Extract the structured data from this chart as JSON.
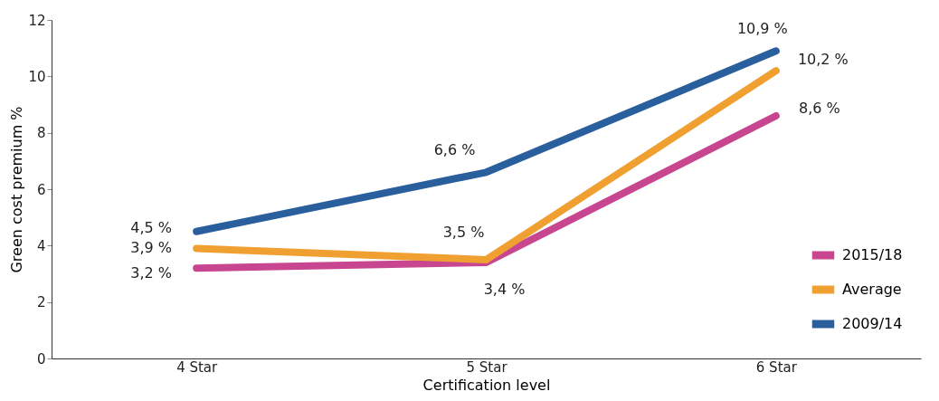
{
  "chart_data": {
    "type": "line",
    "xlabel": "Certification level",
    "ylabel": "Green cost premium %",
    "categories": [
      "4 Star",
      "5 Star",
      "6 Star"
    ],
    "series": [
      {
        "name": "2015/18",
        "color": "#c8468f",
        "values": [
          3.2,
          3.4,
          8.6
        ],
        "value_labels": [
          "3,2 %",
          "3,4 %",
          "8,6 %"
        ]
      },
      {
        "name": "Average",
        "color": "#f0a030",
        "values": [
          3.9,
          3.5,
          10.2
        ],
        "value_labels": [
          "3,9 %",
          "3,5 %",
          "10,2 %"
        ]
      },
      {
        "name": "2009/14",
        "color": "#2a5f9e",
        "values": [
          4.5,
          6.6,
          10.9
        ],
        "value_labels": [
          "4,5 %",
          "6,6 %",
          "10,9 %"
        ]
      }
    ],
    "ylim": [
      0,
      12
    ],
    "yticks": [
      0,
      2,
      4,
      6,
      8,
      10,
      12
    ],
    "grid": false,
    "legend": "bottom right",
    "marker": "none",
    "line_style": "solid"
  }
}
